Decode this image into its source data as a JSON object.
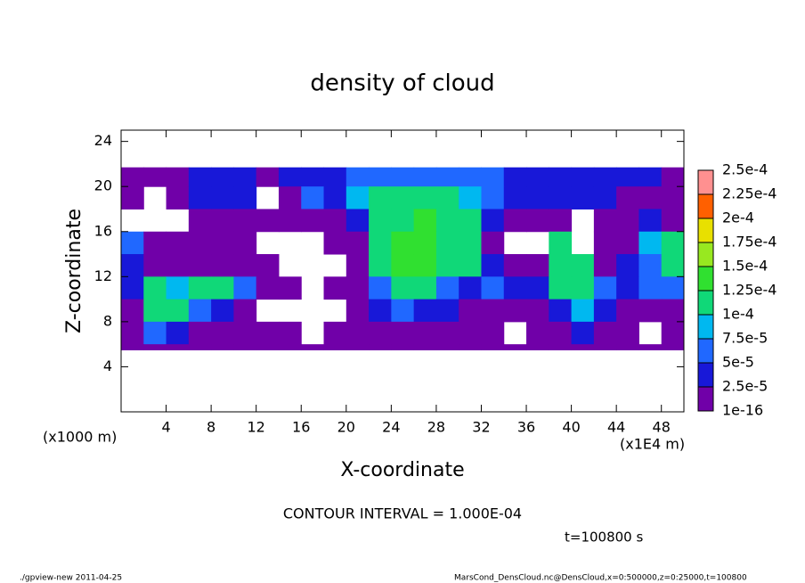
{
  "chart_data": {
    "type": "heatmap",
    "title": "density of cloud",
    "xlabel": "X-coordinate",
    "ylabel": "Z-coordinate",
    "xunit": "(x1E4 m)",
    "yunit": "(x1000 m)",
    "annotation": "CONTOUR INTERVAL = 1.000E-04",
    "time": "t=100800 s",
    "footer_left": "./gpview-new  2011-04-25",
    "footer_right": "MarsCond_DensCloud.nc@DensCloud,x=0:500000,z=0:25000,t=100800",
    "xlim": [
      0,
      50
    ],
    "ylim": [
      0,
      25
    ],
    "xticks": [
      4,
      8,
      12,
      16,
      20,
      24,
      28,
      32,
      36,
      40,
      44,
      48
    ],
    "yticks": [
      4,
      8,
      12,
      16,
      20,
      24
    ],
    "x_edges": [
      0,
      2,
      4,
      6,
      8,
      10,
      12,
      14,
      16,
      18,
      20,
      22,
      24,
      26,
      28,
      30,
      32,
      34,
      36,
      38,
      40,
      42,
      44,
      46,
      48,
      50
    ],
    "z_edges": [
      21.7,
      20,
      18,
      16,
      14,
      12,
      10,
      8,
      6,
      5.5
    ],
    "field": [
      [
        1e-05,
        1e-05,
        1e-05,
        3e-05,
        3e-05,
        3e-05,
        1e-05,
        3e-05,
        4e-05,
        4e-05,
        5e-05,
        5e-05,
        5e-05,
        5e-05,
        5e-05,
        5e-05,
        5e-05,
        4e-05,
        4e-05,
        4e-05,
        4e-05,
        3e-05,
        3e-05,
        3e-05,
        1e-05
      ],
      [
        1e-05,
        null,
        1e-05,
        3e-05,
        4e-05,
        3e-05,
        null,
        1e-05,
        5e-05,
        4e-05,
        8e-05,
        0.0001,
        0.00011,
        0.0001,
        0.00011,
        8e-05,
        5e-05,
        4e-05,
        3e-05,
        3e-05,
        3e-05,
        3e-05,
        1e-05,
        1e-05,
        1e-05
      ],
      [
        null,
        null,
        null,
        1e-05,
        1e-05,
        1e-05,
        1e-05,
        1e-05,
        1e-05,
        1e-05,
        3e-05,
        0.00011,
        0.00012,
        0.00013,
        0.00012,
        0.00011,
        3e-05,
        1e-05,
        1e-05,
        1e-05,
        null,
        1e-05,
        1e-05,
        3e-05,
        1e-05
      ],
      [
        5e-05,
        1e-05,
        1e-05,
        1e-05,
        1e-05,
        1e-05,
        null,
        null,
        null,
        1e-05,
        1e-05,
        0.00011,
        0.00013,
        0.00014,
        0.00012,
        0.00011,
        1e-05,
        null,
        null,
        0.0001,
        null,
        1e-05,
        1e-05,
        8e-05,
        0.0001
      ],
      [
        3e-05,
        1e-05,
        1e-05,
        1e-05,
        1e-05,
        1e-05,
        1e-05,
        null,
        null,
        null,
        1e-05,
        0.00011,
        0.00013,
        0.00014,
        0.00012,
        0.0001,
        3e-05,
        1e-05,
        1e-05,
        0.00011,
        0.0001,
        1e-05,
        3e-05,
        5e-05,
        0.0001
      ],
      [
        3e-05,
        0.00011,
        8e-05,
        0.00011,
        0.0001,
        5e-05,
        1e-05,
        1e-05,
        null,
        1e-05,
        1e-05,
        5e-05,
        0.00011,
        0.0001,
        5e-05,
        3e-05,
        5e-05,
        3e-05,
        3e-05,
        0.0001,
        0.0001,
        5e-05,
        3e-05,
        5e-05,
        5e-05
      ],
      [
        1e-05,
        0.00011,
        0.0001,
        5e-05,
        3e-05,
        1e-05,
        null,
        null,
        null,
        null,
        1e-05,
        3e-05,
        5e-05,
        3e-05,
        3e-05,
        1e-05,
        1e-05,
        1e-05,
        1e-05,
        3e-05,
        8e-05,
        3e-05,
        1e-05,
        1e-05,
        1e-05
      ],
      [
        1e-05,
        5e-05,
        3e-05,
        1e-05,
        1e-05,
        1e-05,
        1e-05,
        1e-05,
        null,
        1e-05,
        1e-05,
        1e-05,
        1e-05,
        1e-05,
        1e-05,
        1e-05,
        1e-05,
        null,
        1e-05,
        1e-05,
        3e-05,
        1e-05,
        1e-05,
        null,
        1e-05
      ],
      [
        1e-05,
        1e-05,
        1e-05,
        1e-05,
        1e-05,
        1e-05,
        1e-05,
        1e-05,
        1e-05,
        1e-05,
        1e-05,
        1e-05,
        1e-05,
        1e-05,
        1e-05,
        1e-05,
        1e-05,
        1e-05,
        1e-05,
        1e-05,
        1e-05,
        1e-05,
        1e-05,
        1e-05,
        1e-05
      ]
    ],
    "levels": [
      {
        "value": 1e-16,
        "label": "1e-16"
      },
      {
        "value": 2.5e-05,
        "label": "2.5e-5"
      },
      {
        "value": 5e-05,
        "label": "5e-5"
      },
      {
        "value": 7.5e-05,
        "label": "7.5e-5"
      },
      {
        "value": 0.0001,
        "label": "1e-4"
      },
      {
        "value": 0.000125,
        "label": "1.25e-4"
      },
      {
        "value": 0.00015,
        "label": "1.5e-4"
      },
      {
        "value": 0.000175,
        "label": "1.75e-4"
      },
      {
        "value": 0.0002,
        "label": "2e-4"
      },
      {
        "value": 0.000225,
        "label": "2.25e-4"
      },
      {
        "value": 0.00025,
        "label": "2.5e-4"
      }
    ],
    "colors": [
      "#7000a8",
      "#1818d8",
      "#2068ff",
      "#00b8f0",
      "#10d878",
      "#30e030",
      "#98e820",
      "#e8e000",
      "#ff6000",
      "#ff9090"
    ]
  }
}
